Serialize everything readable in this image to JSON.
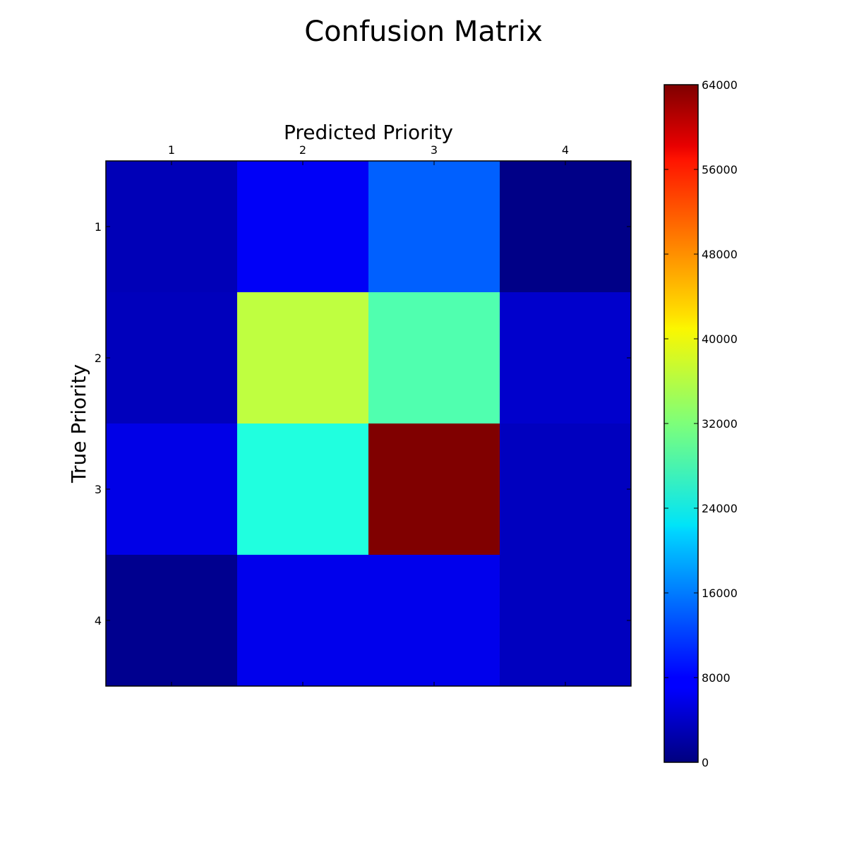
{
  "chart_data": {
    "type": "heatmap",
    "title": "Confusion Matrix",
    "xlabel": "Predicted Priority",
    "ylabel": "True Priority",
    "x_categories": [
      "1",
      "2",
      "3",
      "4"
    ],
    "y_categories": [
      "1",
      "2",
      "3",
      "4"
    ],
    "values": [
      [
        3500,
        7500,
        14000,
        500
      ],
      [
        3800,
        36000,
        29000,
        4800
      ],
      [
        6500,
        26000,
        64000,
        4000
      ],
      [
        1000,
        6800,
        6800,
        4000
      ]
    ],
    "colorbar": {
      "min": 0,
      "max": 64000,
      "ticks": [
        0,
        8000,
        16000,
        24000,
        32000,
        40000,
        48000,
        56000,
        64000
      ],
      "colormap": "jet"
    }
  }
}
